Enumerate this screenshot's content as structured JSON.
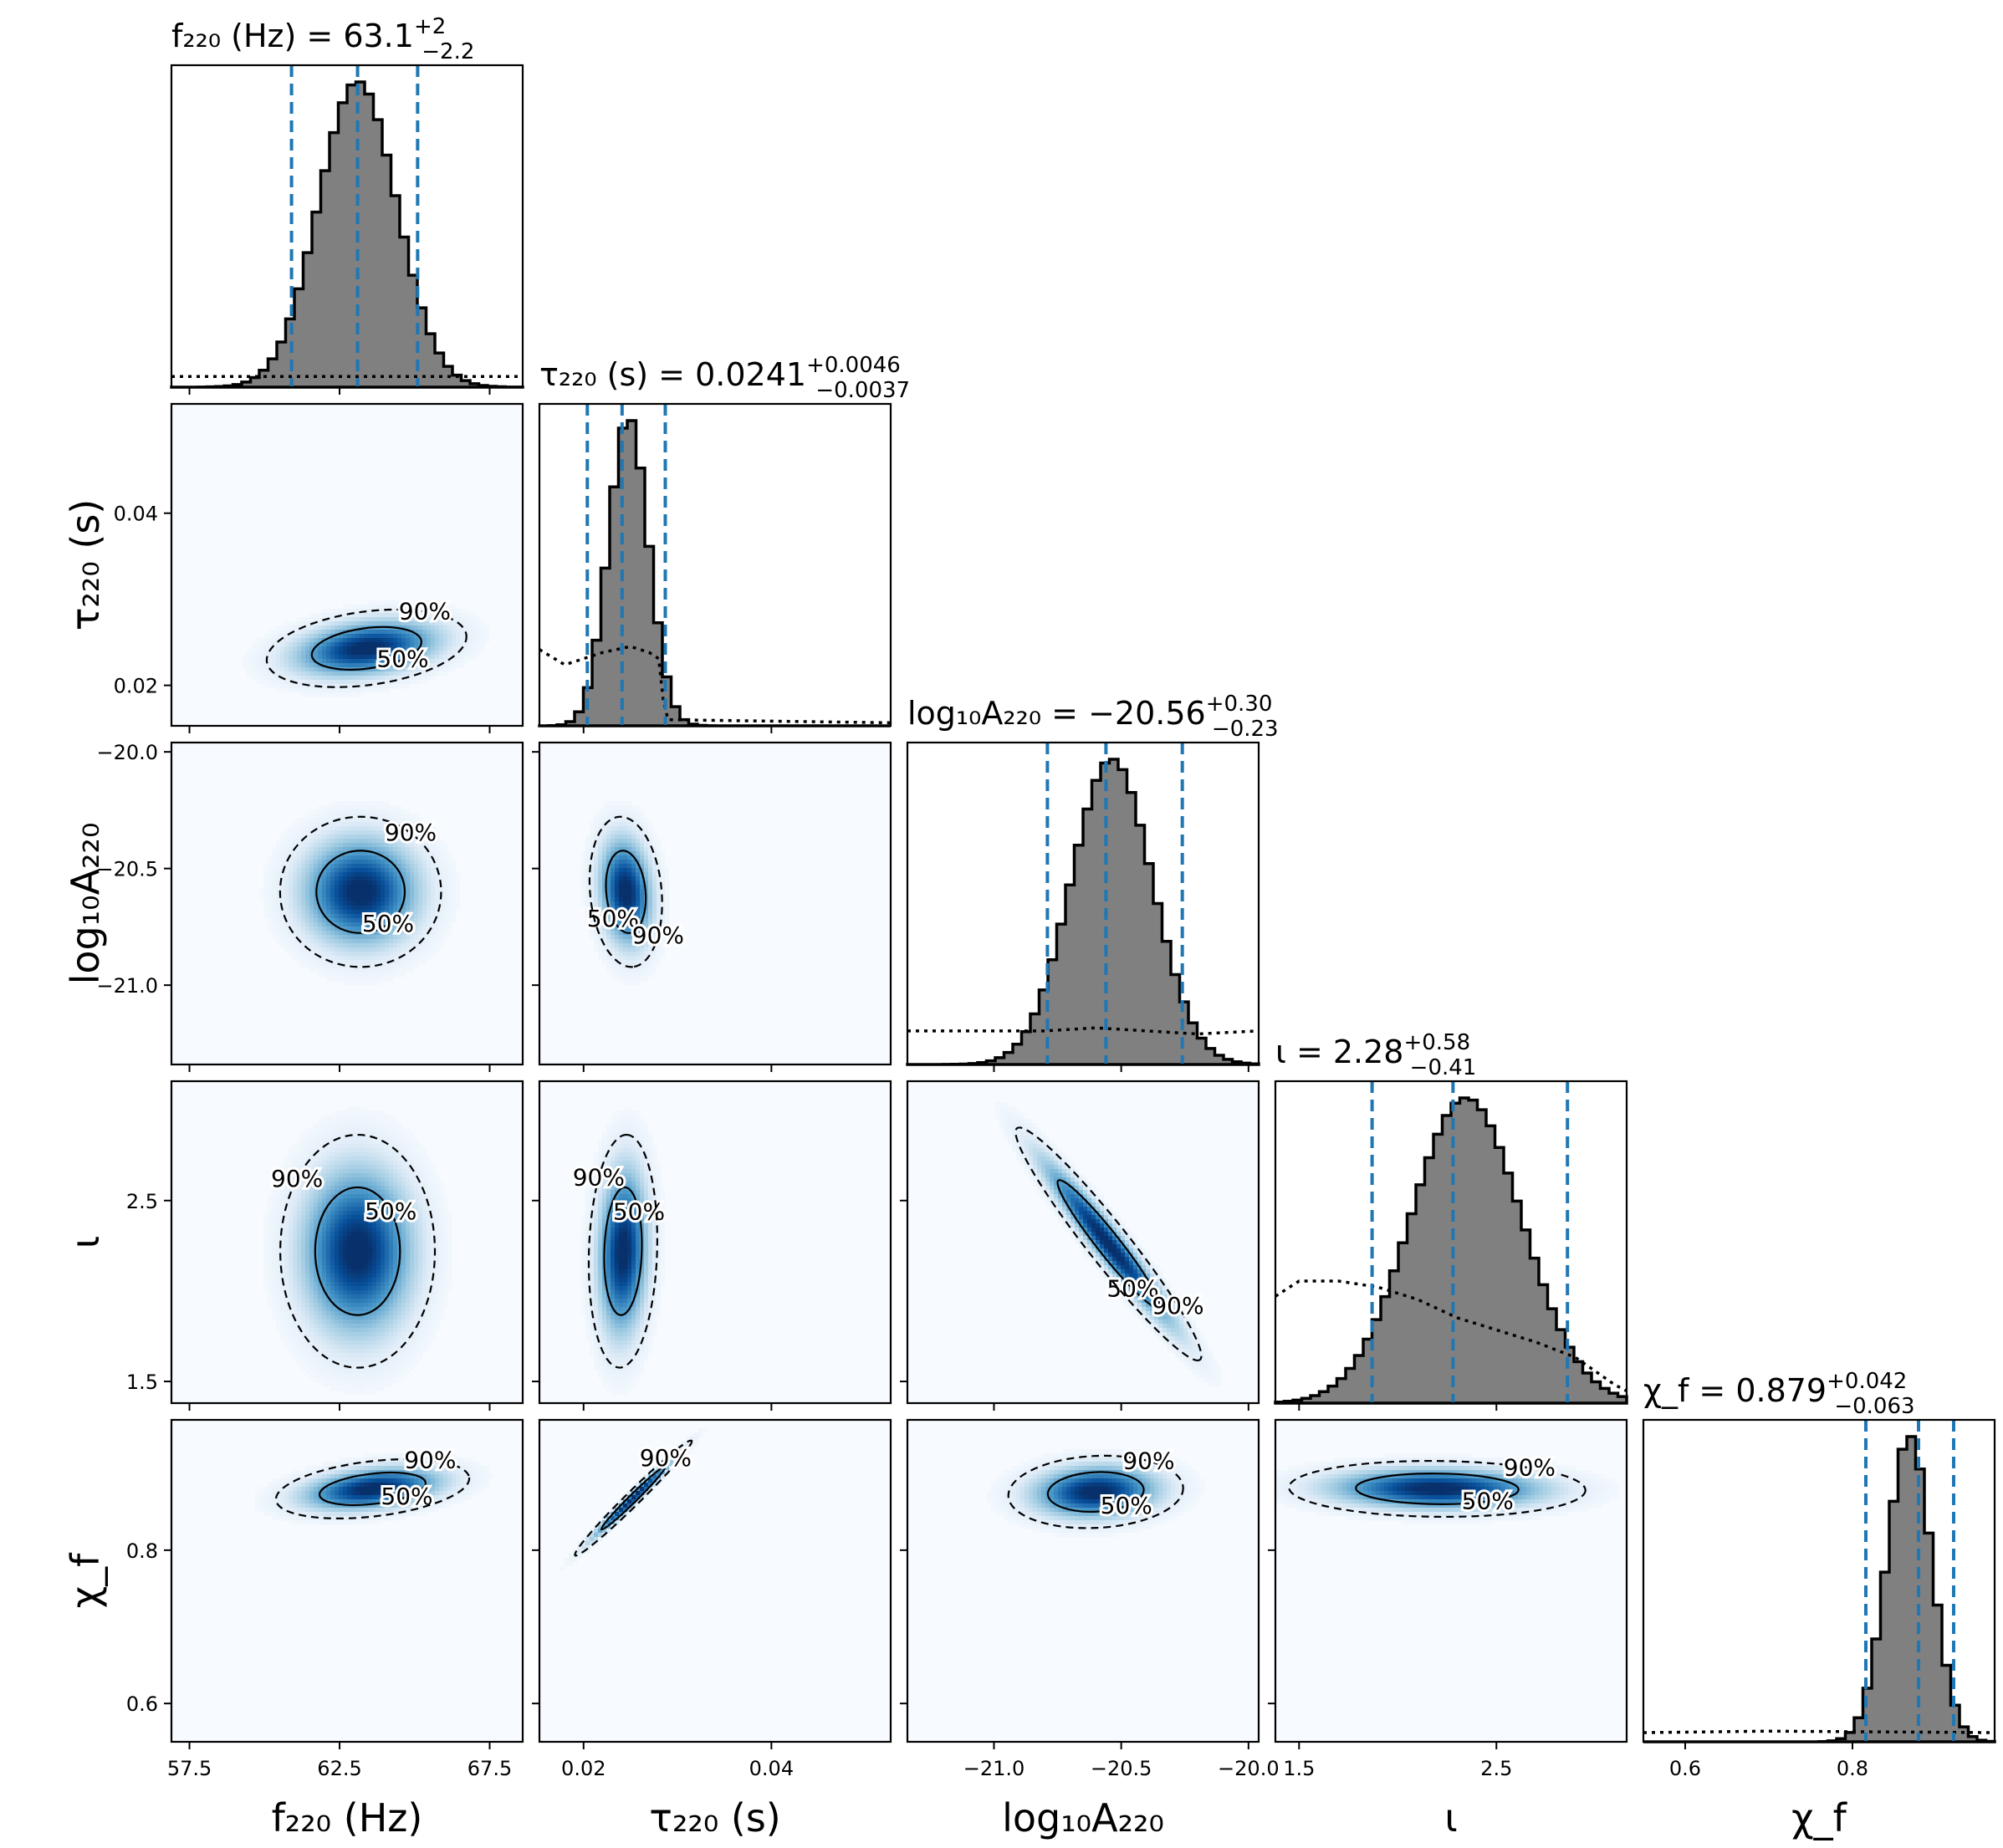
{
  "chart_data": {
    "type": "corner",
    "colors": {
      "median_lines": "#1f77b4",
      "histogram_fill": "#808080",
      "density_cmap": "Blues"
    },
    "contour_levels": [
      "50%",
      "90%"
    ],
    "parameters": [
      {
        "id": "f220",
        "axis_label": "f₂₂₀ (Hz)",
        "title": {
          "lhs": "f₂₂₀ (Hz) = 63.1",
          "sup": "+2",
          "sub": "−2.2"
        },
        "range": [
          56.9,
          68.6
        ],
        "ticks": [
          {
            "v": 57.5,
            "t": "57.5"
          },
          {
            "v": 62.5,
            "t": "62.5"
          },
          {
            "v": 67.5,
            "t": "67.5"
          }
        ],
        "median": 63.1,
        "lower": 60.9,
        "upper": 65.1,
        "hist": {
          "mean": 63.1,
          "sd": 1.3,
          "skew": 0.0
        },
        "prior": [
          [
            56.9,
            0.035
          ],
          [
            68.6,
            0.035
          ]
        ]
      },
      {
        "id": "tau220",
        "axis_label": "τ₂₂₀ (s)",
        "title": {
          "lhs": "τ₂₂₀ (s) = 0.0241",
          "sup": "+0.0046",
          "sub": "−0.0037"
        },
        "range": [
          0.0153,
          0.0527
        ],
        "ticks": [
          {
            "v": 0.02,
            "t": "0.02"
          },
          {
            "v": 0.04,
            "t": "0.04"
          }
        ],
        "median": 0.0241,
        "lower": 0.0204,
        "upper": 0.0287,
        "hist": {
          "mean": 0.0242,
          "sd": 0.0022,
          "skew": 0.35
        },
        "prior": [
          [
            0.0153,
            0.25
          ],
          [
            0.018,
            0.2
          ],
          [
            0.022,
            0.24
          ],
          [
            0.025,
            0.26
          ],
          [
            0.027,
            0.24
          ],
          [
            0.028,
            0.22
          ],
          [
            0.0285,
            0.08
          ],
          [
            0.029,
            0.02
          ],
          [
            0.0527,
            0.01
          ]
        ]
      },
      {
        "id": "logA220",
        "axis_label": "log₁₀A₂₂₀",
        "title": {
          "lhs": "log₁₀A₂₂₀ = −20.56",
          "sup": "+0.30",
          "sub": "−0.23"
        },
        "range": [
          -21.34,
          -19.96
        ],
        "ticks": [
          {
            "v": -21.0,
            "t": "−21.0"
          },
          {
            "v": -20.5,
            "t": "−20.5"
          },
          {
            "v": -20.0,
            "t": "−20.0"
          }
        ],
        "median": -20.56,
        "lower": -20.79,
        "upper": -20.26,
        "hist": {
          "mean": -20.55,
          "sd": 0.16,
          "skew": 0.1
        },
        "prior": [
          [
            -21.34,
            0.11
          ],
          [
            -20.8,
            0.11
          ],
          [
            -20.6,
            0.12
          ],
          [
            -20.4,
            0.11
          ],
          [
            -20.2,
            0.1
          ],
          [
            -19.96,
            0.11
          ]
        ]
      },
      {
        "id": "iota",
        "axis_label": "ι",
        "title": {
          "lhs": "ι = 2.28",
          "sup": "+0.58",
          "sub": "−0.41"
        },
        "range": [
          1.38,
          3.16
        ],
        "ticks": [
          {
            "v": 1.5,
            "t": "1.5"
          },
          {
            "v": 2.5,
            "t": "2.5"
          }
        ],
        "median": 2.28,
        "lower": 1.87,
        "upper": 2.86,
        "hist": {
          "mean": 2.25,
          "sd": 0.3,
          "skew": 0.45
        },
        "prior": [
          [
            1.38,
            0.35
          ],
          [
            1.5,
            0.4
          ],
          [
            1.7,
            0.4
          ],
          [
            1.9,
            0.38
          ],
          [
            2.1,
            0.34
          ],
          [
            2.3,
            0.28
          ],
          [
            2.5,
            0.24
          ],
          [
            2.7,
            0.2
          ],
          [
            2.9,
            0.15
          ],
          [
            3.1,
            0.06
          ],
          [
            3.16,
            0.04
          ]
        ]
      },
      {
        "id": "chif",
        "axis_label": "χ_f",
        "title": {
          "lhs": "χ_f = 0.879",
          "sup": "+0.042",
          "sub": "−0.063"
        },
        "range": [
          0.55,
          0.97
        ],
        "ticks": [
          {
            "v": 0.6,
            "t": "0.6"
          },
          {
            "v": 0.8,
            "t": "0.8"
          }
        ],
        "median": 0.879,
        "lower": 0.816,
        "upper": 0.921,
        "hist": {
          "mean": 0.876,
          "sd": 0.028,
          "skew": -0.4
        },
        "prior": [
          [
            0.55,
            0.03
          ],
          [
            0.7,
            0.035
          ],
          [
            0.97,
            0.03
          ]
        ]
      }
    ],
    "panels2d": [
      {
        "row": 1,
        "col": 0,
        "mu": [
          63.4,
          0.0243
        ],
        "sd": [
          1.55,
          0.0021
        ],
        "rho": 0.3,
        "label50": "50%",
        "label90": "90%"
      },
      {
        "row": 2,
        "col": 0,
        "mu": [
          63.2,
          -20.6
        ],
        "sd": [
          1.25,
          0.15
        ],
        "rho": 0.0,
        "label50": "50%",
        "label90": "90%"
      },
      {
        "row": 2,
        "col": 1,
        "mu": [
          0.0245,
          -20.6
        ],
        "sd": [
          0.0018,
          0.15
        ],
        "rho": -0.15,
        "label50": "50%",
        "label90": "90%"
      },
      {
        "row": 3,
        "col": 0,
        "mu": [
          63.1,
          2.22
        ],
        "sd": [
          1.2,
          0.3
        ],
        "rho": 0.0,
        "label50": "50%",
        "label90": "90%"
      },
      {
        "row": 3,
        "col": 1,
        "mu": [
          0.0242,
          2.22
        ],
        "sd": [
          0.0017,
          0.3
        ],
        "rho": 0.1,
        "label50": "50%",
        "label90": "90%"
      },
      {
        "row": 3,
        "col": 2,
        "mu": [
          -20.55,
          2.26
        ],
        "sd": [
          0.17,
          0.3
        ],
        "rho": -0.96,
        "label50": "50%",
        "label90": "90%"
      },
      {
        "row": 4,
        "col": 0,
        "mu": [
          63.6,
          0.88
        ],
        "sd": [
          1.5,
          0.018
        ],
        "rho": 0.35,
        "label50": "50%",
        "label90": "90%"
      },
      {
        "row": 4,
        "col": 1,
        "mu": [
          0.0253,
          0.868
        ],
        "sd": [
          0.0029,
          0.035
        ],
        "rho": 0.985,
        "label50": "",
        "label90": "90%"
      },
      {
        "row": 4,
        "col": 2,
        "mu": [
          -20.6,
          0.876
        ],
        "sd": [
          0.16,
          0.022
        ],
        "rho": 0.1,
        "label50": "50%",
        "label90": "90%"
      },
      {
        "row": 4,
        "col": 3,
        "mu": [
          2.2,
          0.88
        ],
        "sd": [
          0.35,
          0.017
        ],
        "rho": -0.05,
        "label50": "50%",
        "label90": "90%"
      }
    ]
  }
}
